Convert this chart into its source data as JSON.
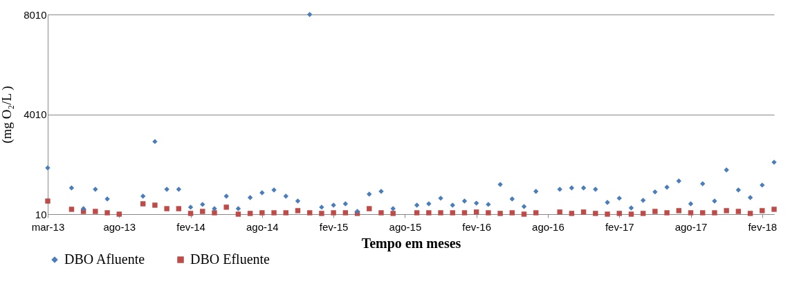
{
  "chart_data": {
    "type": "scatter",
    "xlabel": "Tempo em meses",
    "ylabel": "(mg O₂/L )",
    "categories": [
      "mar-13",
      null,
      null,
      null,
      null,
      null,
      "ago-13",
      null,
      null,
      null,
      null,
      null,
      "fev-14",
      null,
      null,
      null,
      null,
      null,
      "ago-14",
      null,
      null,
      null,
      null,
      null,
      "fev-15",
      null,
      null,
      null,
      null,
      null,
      "ago-15",
      null,
      null,
      null,
      null,
      null,
      "fev-16",
      null,
      null,
      null,
      null,
      null,
      "ago-16",
      null,
      null,
      null,
      null,
      null,
      "fev-17",
      null,
      null,
      null,
      null,
      null,
      "ago-17",
      null,
      null,
      null,
      null,
      null,
      "fev-18",
      null
    ],
    "series": [
      {
        "name": "DBO Afluente",
        "color": "#4a7ebb",
        "marker": "diamond",
        "values": [
          1865,
          null,
          1060,
          230,
          1005,
          620,
          null,
          null,
          730,
          2920,
          1005,
          1005,
          290,
          400,
          230,
          730,
          230,
          675,
          870,
          980,
          730,
          535,
          8010,
          290,
          370,
          425,
          120,
          815,
          925,
          230,
          null,
          370,
          425,
          650,
          370,
          535,
          450,
          400,
          1200,
          620,
          315,
          925,
          null,
          1005,
          1060,
          1060,
          1005,
          480,
          650,
          260,
          565,
          900,
          1090,
          1340,
          425,
          1230,
          535,
          1780,
          980,
          675,
          1175,
          2090
        ]
      },
      {
        "name": "DBO Efluente",
        "color": "#be4b48",
        "marker": "square",
        "values": [
          535,
          null,
          205,
          120,
          120,
          65,
          10,
          null,
          425,
          370,
          230,
          230,
          40,
          120,
          65,
          290,
          10,
          40,
          65,
          65,
          65,
          150,
          65,
          40,
          65,
          65,
          40,
          230,
          65,
          40,
          null,
          65,
          65,
          65,
          65,
          65,
          95,
          65,
          40,
          65,
          10,
          65,
          null,
          95,
          40,
          95,
          40,
          10,
          40,
          10,
          40,
          120,
          65,
          150,
          65,
          65,
          65,
          150,
          120,
          40,
          150,
          205
        ]
      }
    ],
    "ylim": [
      10,
      8010
    ],
    "yticks": [
      10,
      4010,
      8010
    ],
    "grid": "y",
    "legend": "bottom"
  }
}
